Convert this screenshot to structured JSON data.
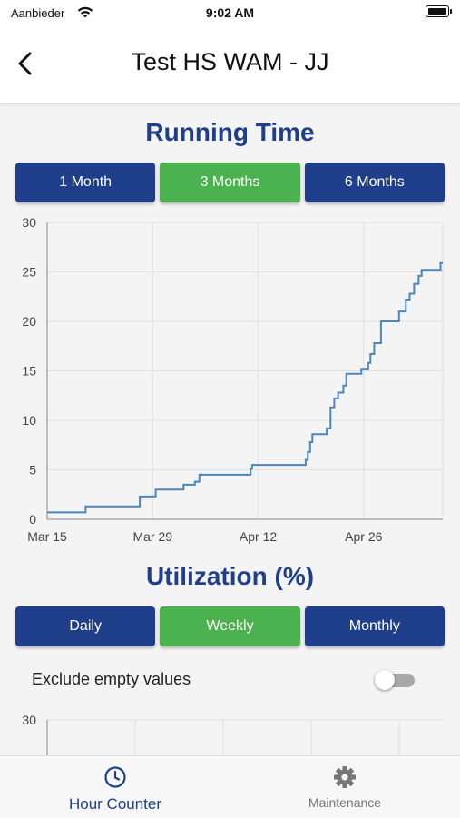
{
  "status_bar": {
    "carrier": "Aanbieder",
    "time": "9:02 AM"
  },
  "header": {
    "title": "Test HS WAM - JJ"
  },
  "running_time": {
    "title": "Running Time",
    "buttons": [
      {
        "label": "1 Month",
        "active": false
      },
      {
        "label": "3 Months",
        "active": true
      },
      {
        "label": "6 Months",
        "active": false
      }
    ]
  },
  "chart_data": {
    "type": "line",
    "ylim": [
      0,
      30
    ],
    "y_ticks": [
      0,
      5,
      10,
      15,
      20,
      25,
      30
    ],
    "x_tick_labels": [
      "Mar 15",
      "Mar 29",
      "Apr 12",
      "Apr 26"
    ],
    "line_color": "#4a86bf",
    "grid": true,
    "series": [
      {
        "x_days": [
          0,
          4.8,
          5.1,
          12,
          12.3,
          13.8,
          14.4,
          16.8,
          18.1,
          19.6,
          20.2,
          26.5,
          27,
          27.2,
          27.9,
          28.4,
          34,
          34.3,
          34.6,
          34.9,
          35.2,
          36.3,
          36.7,
          37.1,
          37.6,
          38.1,
          38.6,
          39.3,
          39.7,
          41.7,
          42.4,
          42.6,
          42.9,
          43.4,
          44.3,
          46.7,
          47.2,
          47.6,
          48.1,
          48.7,
          49.3,
          49.7,
          52.2,
          52.5
        ],
        "values": [
          0.7,
          0.7,
          1.3,
          1.3,
          2.3,
          2.3,
          3,
          3,
          3.5,
          3.8,
          4.5,
          4.5,
          5.1,
          5.5,
          5.5,
          5.5,
          5.5,
          6,
          6.8,
          7.8,
          8.6,
          8.6,
          8.6,
          9.2,
          11.3,
          12.2,
          12.8,
          13.5,
          14.7,
          15.2,
          15.2,
          15.8,
          16.7,
          17.8,
          20,
          21,
          21,
          22.2,
          22.8,
          23.8,
          24.6,
          25.2,
          25.9,
          25.9
        ]
      }
    ]
  },
  "utilization": {
    "title": "Utilization (%)",
    "buttons": [
      {
        "label": "Daily",
        "active": false
      },
      {
        "label": "Weekly",
        "active": true
      },
      {
        "label": "Monthly",
        "active": false
      }
    ],
    "exclude_empty_label": "Exclude empty values",
    "exclude_empty_enabled": false,
    "chart_top_tick": "30"
  },
  "tab_bar": {
    "tabs": [
      {
        "label": "Hour Counter",
        "icon": "clock-icon",
        "active": true
      },
      {
        "label": "Maintenance",
        "icon": "gear-icon",
        "active": false
      }
    ]
  },
  "colors": {
    "brand_blue": "#1f3f8a",
    "active_green": "#4cb14f",
    "line_blue": "#4a86bf"
  }
}
